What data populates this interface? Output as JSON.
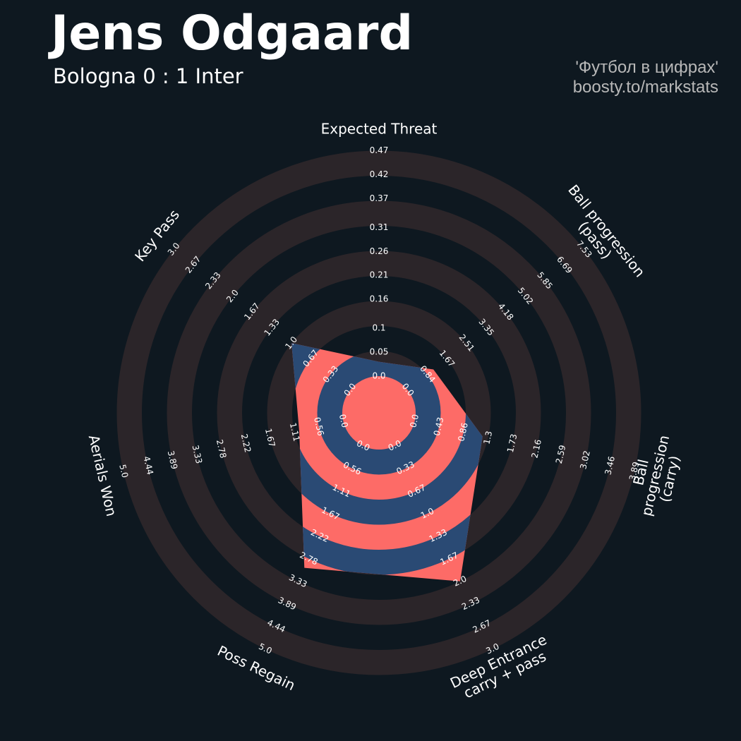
{
  "chart_data": {
    "type": "radar",
    "title": "Jens Odgaard",
    "subtitle": "Bologna 0 : 1 Inter",
    "credits": [
      "'Футбол в цифрах'",
      "boosty.to/markstats"
    ],
    "categories": [
      "Expected Threat",
      "Ball progression (pass)",
      "Ball progression (carry)",
      "Deep Entrance\ncarry + pass",
      "Poss Regain",
      "Aerials Won",
      "Key Pass"
    ],
    "values": [
      0.03,
      1.1,
      1.2,
      2.0,
      3.0,
      1.0,
      1.0
    ],
    "color": "#fd6b67",
    "color2": "#2a4a74",
    "ring_color": "#2b2529",
    "axes": [
      {
        "lim": [
          0,
          0.47
        ],
        "ticks": [
          {
            "value": 0,
            "label": "0.0"
          },
          0.05,
          0.1,
          0.16,
          0.21,
          0.26,
          0.31,
          0.37,
          0.42,
          0.47
        ]
      },
      {
        "lim": [
          0,
          7.53
        ],
        "ticks": [
          {
            "value": 0,
            "label": "0.0"
          },
          0.84,
          1.67,
          2.51,
          3.35,
          4.18,
          5.02,
          5.85,
          6.69,
          7.53
        ]
      },
      {
        "lim": [
          0,
          3.89
        ],
        "ticks": [
          {
            "value": 0,
            "label": "0.0"
          },
          0.43,
          0.86,
          1.3,
          1.73,
          2.16,
          2.59,
          3.02,
          3.46,
          3.89
        ]
      },
      {
        "lim": [
          0,
          3.0
        ],
        "ticks": [
          {
            "value": 0,
            "label": "0.0"
          },
          0.33,
          0.67,
          {
            "value": 1,
            "label": "1.0"
          },
          1.33,
          1.67,
          {
            "value": 2,
            "label": "2.0"
          },
          2.33,
          2.67,
          {
            "value": 3,
            "label": "3.0"
          }
        ]
      },
      {
        "lim": [
          0,
          5.0
        ],
        "ticks": [
          {
            "value": 0,
            "label": "0.0"
          },
          0.56,
          1.11,
          1.67,
          2.22,
          2.78,
          3.33,
          3.89,
          4.44,
          {
            "value": 5,
            "label": "5.0"
          }
        ]
      },
      {
        "lim": [
          0,
          5.0
        ],
        "ticks": [
          {
            "value": 0,
            "label": "0.0"
          },
          0.56,
          1.11,
          1.67,
          2.22,
          2.78,
          3.33,
          3.89,
          4.44,
          {
            "value": 5,
            "label": "5.0"
          }
        ]
      },
      {
        "lim": [
          0,
          3.0
        ],
        "ticks": [
          {
            "value": 0,
            "label": "0.0"
          },
          0.33,
          0.67,
          {
            "value": 1,
            "label": "1.0"
          },
          1.33,
          1.67,
          {
            "value": 2,
            "label": "2.0"
          },
          2.33,
          2.67,
          {
            "value": 3,
            "label": "3.0"
          }
        ]
      }
    ]
  }
}
